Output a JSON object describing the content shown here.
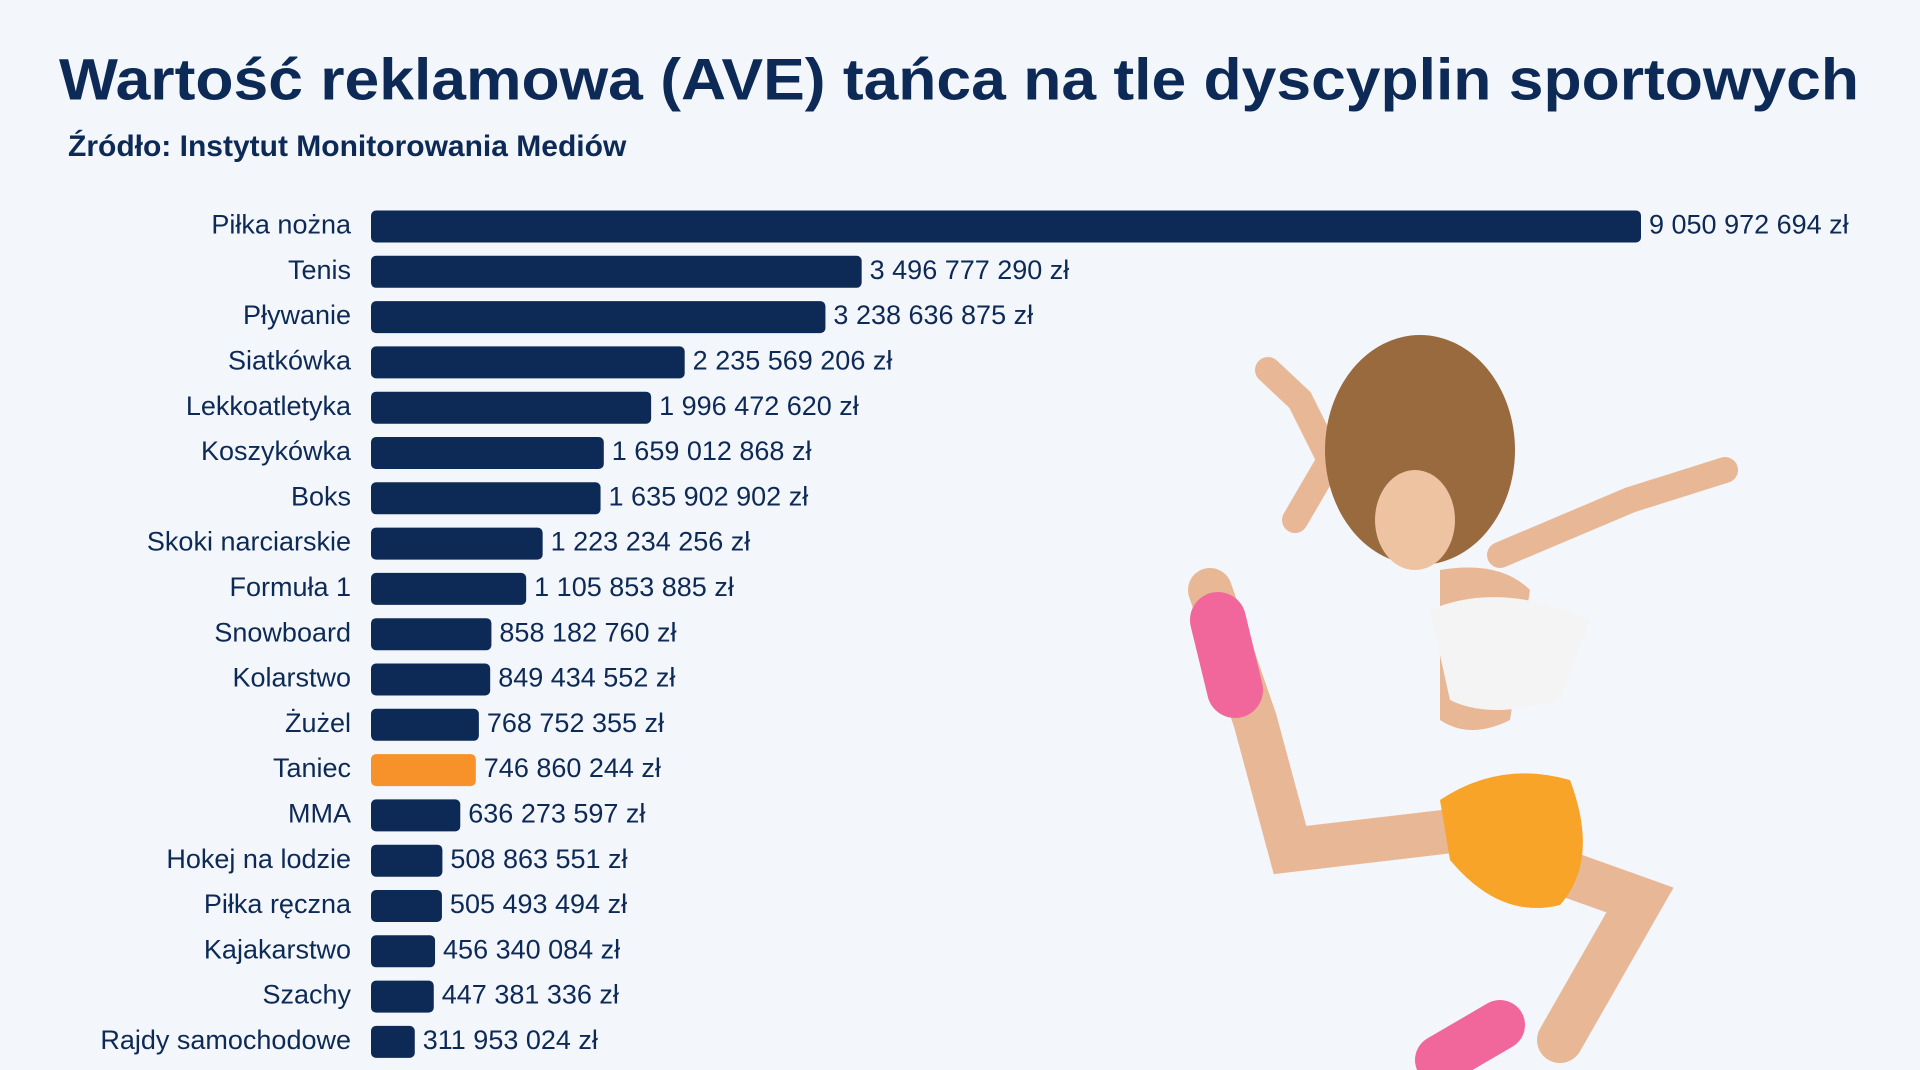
{
  "chart_data": {
    "type": "bar",
    "orientation": "horizontal",
    "title": "Wartość reklamowa (AVE) tańca na tle dyscyplin sportowych",
    "subtitle": "Źródło: Instytut Monitorowania Mediów",
    "categories": [
      "Piłka nożna",
      "Tenis",
      "Pływanie",
      "Siatkówka",
      "Lekkoatletyka",
      "Koszykówka",
      "Boks",
      "Skoki narciarskie",
      "Formuła 1",
      "Snowboard",
      "Kolarstwo",
      "Żużel",
      "Taniec",
      "MMA",
      "Hokej na lodzie",
      "Piłka ręczna",
      "Kajakarstwo",
      "Szachy",
      "Rajdy samochodowe"
    ],
    "values": [
      9050972694,
      3496777290,
      3238636875,
      2235569206,
      1996472620,
      1659012868,
      1635902902,
      1223234256,
      1105853885,
      858182760,
      849434552,
      768752355,
      746860244,
      636273597,
      508863551,
      505493494,
      456340084,
      447381336,
      311953024
    ],
    "value_labels": [
      "9 050 972 694 zł",
      "3 496 777 290 zł",
      "3 238 636 875 zł",
      "2 235 569 206 zł",
      "1 996 472 620 zł",
      "1 659 012 868 zł",
      "1 635 902 902 zł",
      "1 223 234 256 zł",
      "1 105 853 885 zł",
      "858 182 760 zł",
      "849 434 552 zł",
      "768 752 355 zł",
      "746 860 244 zł",
      "636 273 597 zł",
      "508 863 551 zł",
      "505 493 494 zł",
      "456 340 084 zł",
      "447 381 336 zł",
      "311 953 024 zł"
    ],
    "colors": [
      "#0d2a57",
      "#0d2a57",
      "#0d2a57",
      "#0d2a57",
      "#0d2a57",
      "#0d2a57",
      "#0d2a57",
      "#0d2a57",
      "#0d2a57",
      "#0d2a57",
      "#0d2a57",
      "#0d2a57",
      "#f7922a",
      "#0d2a57",
      "#0d2a57",
      "#0d2a57",
      "#0d2a57",
      "#0d2a57",
      "#0d2a57"
    ]
  }
}
